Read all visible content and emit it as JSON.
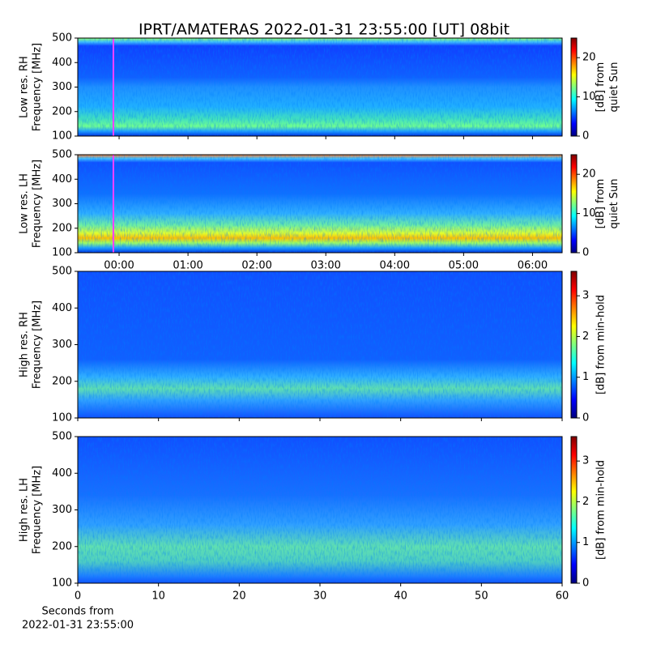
{
  "title": "IPRT/AMATERAS 2022-01-31 23:55:00 [UT]   08bit",
  "chart_data": [
    {
      "type": "heatmap",
      "ylabel": [
        "Low res. RH",
        "Frequency [MHz]"
      ],
      "xlim": [
        -0.6,
        6.43
      ],
      "ylim": [
        100,
        500
      ],
      "yticks": [
        100,
        200,
        300,
        400,
        500
      ],
      "vline": -0.083,
      "vline_color": "#ff40ff",
      "colorbar": {
        "clim": [
          0,
          25
        ],
        "ticks": [
          0,
          10,
          20
        ],
        "label": [
          "[dB] from",
          "quiet Sun"
        ]
      }
    },
    {
      "type": "heatmap",
      "ylabel": [
        "Low res. LH",
        "Frequency [MHz]"
      ],
      "xlim": [
        -0.6,
        6.43
      ],
      "ylim": [
        100,
        500
      ],
      "yticks": [
        100,
        200,
        300,
        400,
        500
      ],
      "xticks": [
        {
          "value": 0,
          "label": "00:00"
        },
        {
          "value": 1,
          "label": "01:00"
        },
        {
          "value": 2,
          "label": "02:00"
        },
        {
          "value": 3,
          "label": "03:00"
        },
        {
          "value": 4,
          "label": "04:00"
        },
        {
          "value": 5,
          "label": "05:00"
        },
        {
          "value": 6,
          "label": "06:00"
        }
      ],
      "vline": -0.083,
      "vline_color": "#ff40ff",
      "colorbar": {
        "clim": [
          0,
          25
        ],
        "ticks": [
          0,
          10,
          20
        ],
        "label": [
          "[dB] from",
          "quiet Sun"
        ]
      }
    },
    {
      "type": "heatmap",
      "ylabel": [
        "High res. RH",
        "Frequency [MHz]"
      ],
      "xlim": [
        0,
        60
      ],
      "ylim": [
        100,
        500
      ],
      "yticks": [
        100,
        200,
        300,
        400,
        500
      ],
      "colorbar": {
        "clim": [
          0,
          3.6
        ],
        "ticks": [
          0,
          1,
          2,
          3
        ],
        "label": [
          "[dB] from min-hold"
        ]
      }
    },
    {
      "type": "heatmap",
      "ylabel": [
        "High res. LH",
        "Frequency [MHz]"
      ],
      "xlim": [
        0,
        60
      ],
      "ylim": [
        100,
        500
      ],
      "yticks": [
        100,
        200,
        300,
        400,
        500
      ],
      "xticks": [
        0,
        10,
        20,
        30,
        40,
        50,
        60
      ],
      "xlabel": [
        "Seconds from",
        "2022-01-31 23:55:00"
      ],
      "colorbar": {
        "clim": [
          0,
          3.6
        ],
        "ticks": [
          0,
          1,
          2,
          3
        ],
        "label": [
          "[dB] from min-hold"
        ]
      }
    }
  ]
}
